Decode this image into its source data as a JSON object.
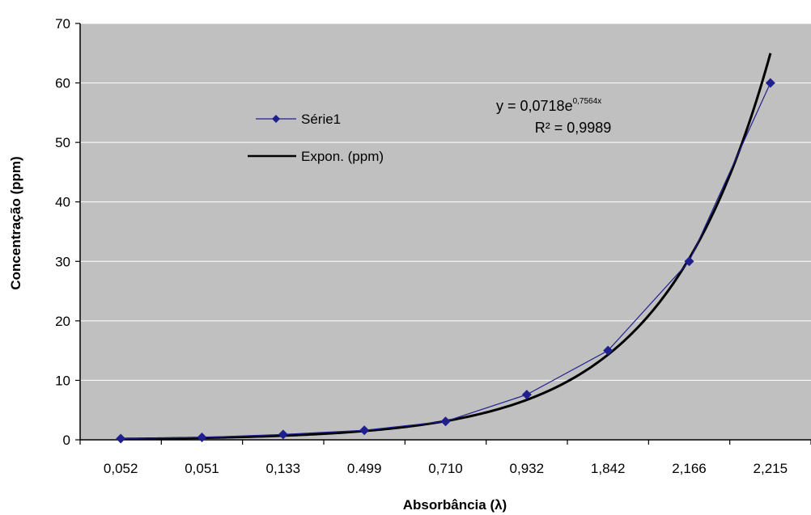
{
  "chart_data": {
    "type": "line",
    "categories": [
      "0,052",
      "0,051",
      "0,133",
      "0.499",
      "0,710",
      "0,932",
      "1,842",
      "2,166",
      "2,215"
    ],
    "series": [
      {
        "name": "Série1",
        "values": [
          0.2,
          0.4,
          0.9,
          1.6,
          3.1,
          7.6,
          15.0,
          30.0,
          60.0
        ],
        "color": "#1f1f8f",
        "marker": "diamond"
      },
      {
        "name": "Expon. (ppm)",
        "trendline": "exponential",
        "coefficient": 0.0718,
        "exponent": 0.7564,
        "color": "#000000"
      }
    ],
    "trendline_end_value": 65,
    "equation": {
      "prefix": "y = 0,0718e",
      "superscript": "0,7564x"
    },
    "r_squared": "R² = 0,9989",
    "xlabel": "Absorbância (λ)",
    "ylabel": "Concentração (ppm)",
    "ylim": [
      0,
      70
    ],
    "yticks": [
      0,
      10,
      20,
      30,
      40,
      50,
      60,
      70
    ],
    "grid": true,
    "legend_position": "top-left inside plot",
    "colors": {
      "plot_background": "#c0c0c0",
      "gridline": "#ffffff",
      "axis": "#000000"
    }
  }
}
